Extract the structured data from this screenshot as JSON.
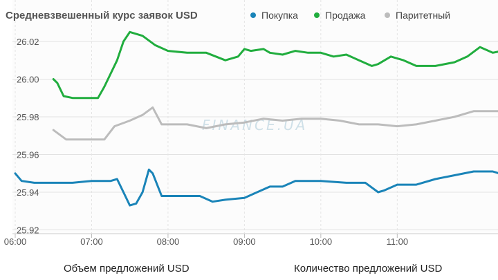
{
  "chart_data": {
    "type": "line",
    "title": "Средневзвешенный курс заявок USD",
    "legend_placement": "top",
    "watermark": "FINANCE.UA",
    "x_ticks": [
      "06:00",
      "07:00",
      "08:00",
      "09:00",
      "10:00",
      "11:00"
    ],
    "x_range": [
      "06:00",
      "12:30"
    ],
    "y_ticks": [
      "26.02",
      "26.00",
      "25.98",
      "25.96",
      "25.94",
      "25.92"
    ],
    "ylim": [
      25.918,
      26.042
    ],
    "grid": true,
    "series": [
      {
        "name": "Покупка",
        "color": "#1a84b8",
        "points": [
          [
            "06:00",
            25.95
          ],
          [
            "06:05",
            25.946
          ],
          [
            "06:15",
            25.945
          ],
          [
            "06:30",
            25.945
          ],
          [
            "06:45",
            25.945
          ],
          [
            "07:00",
            25.946
          ],
          [
            "07:15",
            25.946
          ],
          [
            "07:20",
            25.947
          ],
          [
            "07:25",
            25.94
          ],
          [
            "07:30",
            25.933
          ],
          [
            "07:35",
            25.934
          ],
          [
            "07:40",
            25.94
          ],
          [
            "07:45",
            25.952
          ],
          [
            "07:48",
            25.95
          ],
          [
            "07:55",
            25.938
          ],
          [
            "08:00",
            25.938
          ],
          [
            "08:15",
            25.938
          ],
          [
            "08:25",
            25.938
          ],
          [
            "08:35",
            25.935
          ],
          [
            "08:45",
            25.936
          ],
          [
            "09:00",
            25.937
          ],
          [
            "09:10",
            25.94
          ],
          [
            "09:20",
            25.943
          ],
          [
            "09:30",
            25.943
          ],
          [
            "09:40",
            25.946
          ],
          [
            "10:00",
            25.946
          ],
          [
            "10:20",
            25.945
          ],
          [
            "10:35",
            25.945
          ],
          [
            "10:45",
            25.94
          ],
          [
            "10:50",
            25.941
          ],
          [
            "11:00",
            25.944
          ],
          [
            "11:15",
            25.944
          ],
          [
            "11:30",
            25.947
          ],
          [
            "11:45",
            25.949
          ],
          [
            "12:00",
            25.951
          ],
          [
            "12:15",
            25.951
          ],
          [
            "12:20",
            25.95
          ]
        ]
      },
      {
        "name": "Продажа",
        "color": "#21ad3e",
        "points": [
          [
            "06:30",
            26.0
          ],
          [
            "06:33",
            25.998
          ],
          [
            "06:38",
            25.991
          ],
          [
            "06:45",
            25.99
          ],
          [
            "07:00",
            25.99
          ],
          [
            "07:05",
            25.99
          ],
          [
            "07:10",
            25.996
          ],
          [
            "07:20",
            26.01
          ],
          [
            "07:25",
            26.02
          ],
          [
            "07:30",
            26.025
          ],
          [
            "07:40",
            26.023
          ],
          [
            "07:50",
            26.018
          ],
          [
            "08:00",
            26.015
          ],
          [
            "08:15",
            26.014
          ],
          [
            "08:30",
            26.014
          ],
          [
            "08:45",
            26.01
          ],
          [
            "08:55",
            26.012
          ],
          [
            "09:00",
            26.016
          ],
          [
            "09:05",
            26.015
          ],
          [
            "09:15",
            26.016
          ],
          [
            "09:20",
            26.014
          ],
          [
            "09:30",
            26.013
          ],
          [
            "09:40",
            26.015
          ],
          [
            "09:50",
            26.014
          ],
          [
            "10:00",
            26.014
          ],
          [
            "10:10",
            26.012
          ],
          [
            "10:20",
            26.013
          ],
          [
            "10:30",
            26.01
          ],
          [
            "10:40",
            26.007
          ],
          [
            "10:45",
            26.008
          ],
          [
            "10:55",
            26.012
          ],
          [
            "11:05",
            26.01
          ],
          [
            "11:15",
            26.007
          ],
          [
            "11:30",
            26.007
          ],
          [
            "11:45",
            26.009
          ],
          [
            "11:55",
            26.012
          ],
          [
            "12:05",
            26.017
          ],
          [
            "12:15",
            26.014
          ],
          [
            "12:30",
            26.016
          ]
        ]
      },
      {
        "name": "Паритетный",
        "color": "#bcbcbc",
        "points": [
          [
            "06:30",
            25.973
          ],
          [
            "06:40",
            25.968
          ],
          [
            "06:45",
            25.968
          ],
          [
            "07:00",
            25.968
          ],
          [
            "07:10",
            25.968
          ],
          [
            "07:18",
            25.975
          ],
          [
            "07:30",
            25.978
          ],
          [
            "07:40",
            25.981
          ],
          [
            "07:48",
            25.985
          ],
          [
            "07:55",
            25.976
          ],
          [
            "08:00",
            25.976
          ],
          [
            "08:15",
            25.976
          ],
          [
            "08:30",
            25.974
          ],
          [
            "08:45",
            25.976
          ],
          [
            "09:00",
            25.977
          ],
          [
            "09:15",
            25.979
          ],
          [
            "09:30",
            25.978
          ],
          [
            "09:45",
            25.979
          ],
          [
            "10:00",
            25.979
          ],
          [
            "10:15",
            25.978
          ],
          [
            "10:30",
            25.976
          ],
          [
            "10:45",
            25.976
          ],
          [
            "11:00",
            25.975
          ],
          [
            "11:15",
            25.976
          ],
          [
            "11:30",
            25.978
          ],
          [
            "11:45",
            25.98
          ],
          [
            "12:00",
            25.983
          ],
          [
            "12:15",
            25.983
          ],
          [
            "12:30",
            25.983
          ]
        ]
      }
    ]
  },
  "footer": {
    "left_label": "Объем предложений USD",
    "right_label": "Количество предложений USD"
  }
}
